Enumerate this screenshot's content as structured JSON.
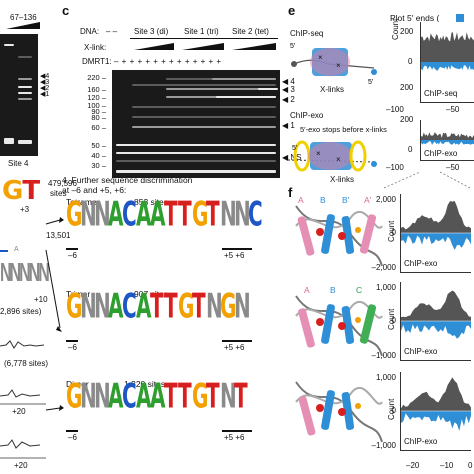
{
  "panel_b": {
    "ratio_label": "67–136",
    "site_label": "Site 4",
    "logo_fragment": "GT",
    "count1": "479,596",
    "count1_unit": "sites",
    "pos1": "+3",
    "count2": "13,501",
    "letter_a": "A",
    "letter_n": "NNNNN",
    "count3": "2,896 sites)",
    "pos2": "+10",
    "count4": "(6,778 sites)",
    "pos3": "+20",
    "pos4": "+20"
  },
  "panel_c": {
    "letter": "c",
    "dna_label": "DNA:",
    "dna_dashes": "–  –",
    "site3": "Site 3 (di)",
    "site1": "Site 1 (tri)",
    "site2": "Site 2 (tet)",
    "xlink_label": "X-link:",
    "dmrt_label": "DMRT1:",
    "dmrt_signs": "– + + + + + + + + + + + + +",
    "mw_marks": [
      "220",
      "160",
      "120",
      "100",
      "90",
      "80",
      "60",
      "50",
      "40",
      "30"
    ],
    "arrows": [
      "4",
      "3",
      "2",
      "1",
      "NS"
    ]
  },
  "panel_d": {
    "step_text_1": "4. Further sequence discrimination",
    "step_text_2": "at –6 and +5, +6:",
    "logos": [
      {
        "name": "Tetramer",
        "sites": "853 sites",
        "seq": "GNNACAATTGTNNC",
        "left": "–6",
        "right": "+5  +6"
      },
      {
        "name": "Trimer",
        "sites": "907 sites",
        "seq": "GNNACATTGTNGN",
        "left": "–6",
        "right": "+5  +6"
      },
      {
        "name": "Dimer",
        "sites": "1,320 sites",
        "seq": "GNNACAATTGTNT",
        "left": "–6",
        "right": "+5  +6"
      }
    ]
  },
  "panel_e": {
    "letter": "e",
    "plot_title": "Plot 5′ ends (",
    "chipseq_label": "ChIP-seq",
    "chipexo_label": "ChIP-exo",
    "xlinks_label": "X-links",
    "exo_note": "5′-exo stops before x-links",
    "five_prime": "5′",
    "ylabel": "Count",
    "plot_labels": [
      "ChIP-seq",
      "ChIP-exo"
    ],
    "x_ticks_1": [
      "–100",
      "–50"
    ],
    "x_ticks_2": [
      "–100",
      "–50"
    ],
    "y_ticks": [
      "200",
      "0",
      "200"
    ]
  },
  "panel_f": {
    "letter": "f",
    "dimer_letters": [
      "A",
      "B",
      "B′",
      "A′"
    ],
    "trimer_letters": [
      "A",
      "B",
      "C"
    ],
    "ylabel": "Count",
    "plot_label": "ChIP-exo",
    "y_ticks_1": [
      "2,000",
      "0",
      "–2,000"
    ],
    "y_ticks_2": [
      "1,000",
      "0",
      "–1,000"
    ],
    "y_ticks_3": [
      "1,000",
      "0",
      "–1,000"
    ],
    "x_ticks": [
      "–20",
      "–10",
      "0"
    ]
  },
  "colors": {
    "A": "#2e9e2e",
    "C": "#1f56c6",
    "G": "#f2a100",
    "T": "#d81f1f",
    "N": "#8a8a8a",
    "plus": "#555555",
    "minus": "#2f8fd6"
  }
}
